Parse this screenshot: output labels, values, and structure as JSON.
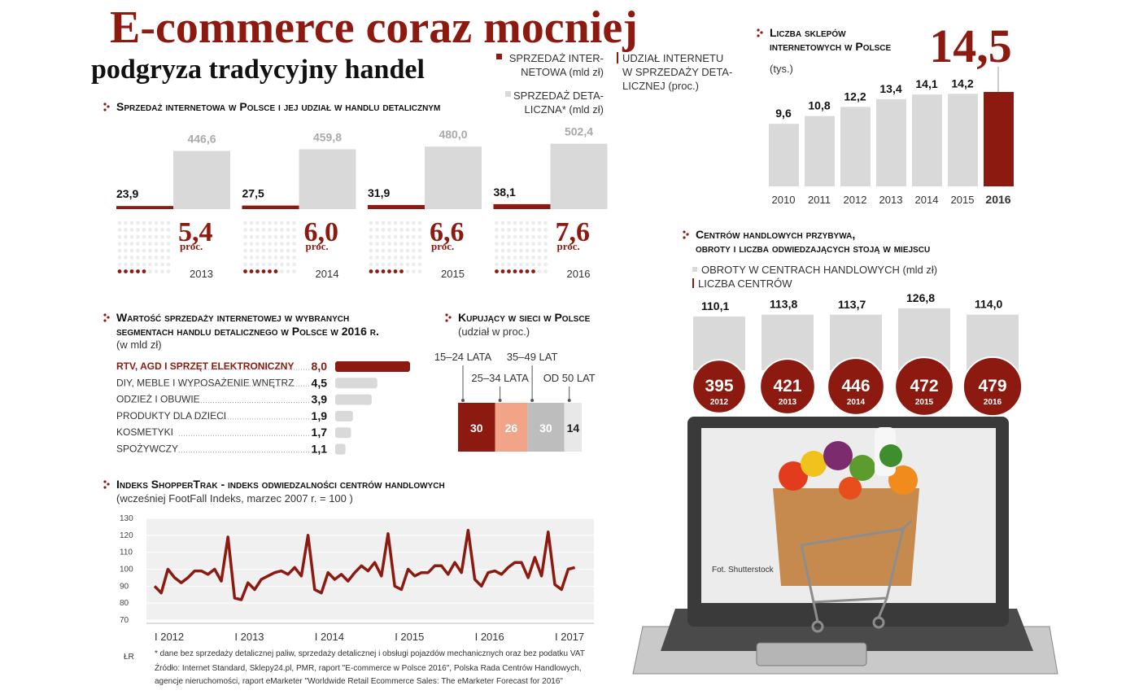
{
  "header": {
    "title": "E-commerce coraz mocniej",
    "subtitle": "podgryza tradycyjny handel"
  },
  "chart_data": [
    {
      "type": "bar",
      "title": "Sprzedaż internetowa w Polsce i jej udział w handlu detalicznym",
      "categories": [
        "2013",
        "2014",
        "2015",
        "2016"
      ],
      "series": [
        {
          "name": "SPRZEDAŻ INTER-\nNETOWA (mld zł)",
          "color": "#8c1a10",
          "values": [
            23.9,
            27.5,
            31.9,
            38.1
          ],
          "value_labels": [
            "23,9",
            "27,5",
            "31,9",
            "38,1"
          ]
        },
        {
          "name": "SPRZEDAŻ DETA-\nLICZNA* (mld zł)",
          "color": "#d9d9d9",
          "values": [
            446.6,
            459.8,
            480.0,
            502.4
          ],
          "value_labels": [
            "446,6",
            "459,8",
            "480,0",
            "502,4"
          ]
        }
      ],
      "share": {
        "name": "UDZIAŁ INTERNETU\nW SPRZEDAŻY DETA-\nLICZNEJ (proc.)",
        "color": "#8c1a10",
        "unit": "proc.",
        "values": [
          5.4,
          6.0,
          6.6,
          7.6
        ],
        "value_labels": [
          "5,4",
          "6,0",
          "6,6",
          "7,6"
        ]
      }
    },
    {
      "type": "column",
      "title": "Liczba sklepów\ninternetowych w Polsce",
      "subtitle": "(tys.)",
      "categories": [
        "2010",
        "2011",
        "2012",
        "2013",
        "2014",
        "2015",
        "2016"
      ],
      "values": [
        9.6,
        10.8,
        12.2,
        13.4,
        14.1,
        14.2,
        14.5
      ],
      "value_labels": [
        "9,6",
        "10,8",
        "12,2",
        "13,4",
        "14,1",
        "14,2",
        "14,5"
      ],
      "color": "#d9d9d9",
      "highlight_color": "#8c1a10"
    },
    {
      "type": "combo",
      "title": "Centrów handlowych przybywa,\nobroty i liczba odwiedzających stoją w miejscu",
      "categories": [
        "2012",
        "2013",
        "2014",
        "2015",
        "2016"
      ],
      "series": [
        {
          "name": "OBROTY W CENTRACH HANDLOWYCH (mld zł)",
          "color": "#d9d9d9",
          "values": [
            110.1,
            113.8,
            113.7,
            126.8,
            114.0
          ],
          "value_labels": [
            "110,1",
            "113,8",
            "113,7",
            "126,8",
            "114,0"
          ]
        },
        {
          "name": "LICZBA CENTRÓW",
          "color": "#8c1a10",
          "values": [
            395,
            421,
            446,
            472,
            479
          ]
        }
      ]
    },
    {
      "type": "barh",
      "title": "Wartość sprzedaży internetowej w wybranych\nsegmentach handlu detalicznego w Polsce w 2016 r.",
      "subtitle": "(w mld zł)",
      "categories": [
        "RTV, AGD I SPRZĘT ELEKTRONICZNY",
        "DIY, MEBLE I WYPOSAŻENIE WNĘTRZ",
        "ODZIEŻ I OBUWIE",
        "PRODUKTY DLA DZIECI",
        "KOSMETYKI",
        "SPOŻYWCZY"
      ],
      "values": [
        8.0,
        4.5,
        3.9,
        1.9,
        1.7,
        1.1
      ],
      "value_labels": [
        "8,0",
        "4,5",
        "3,9",
        "1,9",
        "1,7",
        "1,1"
      ],
      "colors": [
        "#8c1a10",
        "#d9d9d9",
        "#d9d9d9",
        "#d9d9d9",
        "#d9d9d9",
        "#d9d9d9"
      ]
    },
    {
      "type": "stacked",
      "title": "Kupujący w sieci w Polsce",
      "subtitle": "(udział w proc.)",
      "categories": [
        "15–24 LATA",
        "25–34 LATA",
        "35–49 LAT",
        "OD 50 LAT"
      ],
      "values": [
        30,
        26,
        30,
        14
      ],
      "colors": [
        "#8c1a10",
        "#f2a488",
        "#bdbdbd",
        "#e8e8e8"
      ]
    },
    {
      "type": "line",
      "title": "Indeks ShopperTrak - indeks odwiedzalności centrów handlowych",
      "subtitle": "(wcześniej FootFall Indeks, marzec 2007 r. = 100 )",
      "categories": [
        "I 2012",
        null,
        null,
        null,
        null,
        null,
        null,
        null,
        null,
        null,
        null,
        null,
        "I 2013",
        null,
        null,
        null,
        null,
        null,
        null,
        null,
        null,
        null,
        null,
        null,
        "I 2014",
        null,
        null,
        null,
        null,
        null,
        null,
        null,
        null,
        null,
        null,
        null,
        "I 2015",
        null,
        null,
        null,
        null,
        null,
        null,
        null,
        null,
        null,
        null,
        null,
        "I 2016",
        null,
        null,
        null,
        null,
        null,
        null,
        null,
        null,
        null,
        null,
        null,
        "I 2017",
        null,
        null,
        null
      ],
      "values": [
        90,
        86,
        100,
        95,
        92,
        95,
        99,
        99,
        97,
        100,
        93,
        119,
        83,
        82,
        92,
        88,
        94,
        96,
        98,
        99,
        97,
        101,
        96,
        120,
        88,
        86,
        98,
        94,
        97,
        93,
        98,
        102,
        99,
        104,
        96,
        121,
        90,
        88,
        100,
        96,
        98,
        98,
        102,
        102,
        97,
        104,
        98,
        123,
        94,
        90,
        98,
        99,
        97,
        101,
        104,
        104,
        95,
        107,
        96,
        122,
        91,
        88,
        100,
        101
      ],
      "color": "#8c1a10",
      "ylim": [
        70,
        130
      ],
      "yticks": [
        70,
        80,
        90,
        100,
        110,
        120,
        130
      ],
      "grid": true
    }
  ],
  "photo_credit": "Fot. Shutterstock",
  "author": "ŁR",
  "footnote": "* dane bez sprzedaży detalicznej paliw, sprzedaży detalicznej i obsługi pojazdów mechanicznych oraz bez podatku VAT",
  "source": "Źródło: Internet Standard, Sklepy24.pl, PMR, raport \"E-commerce w Polsce 2016\", Polska Rada Centrów Handlowych,\nagencje nieruchomości, raport  eMarketer \"Worldwide Retail Ecommerce Sales: The eMarketer Forecast for 2016\""
}
